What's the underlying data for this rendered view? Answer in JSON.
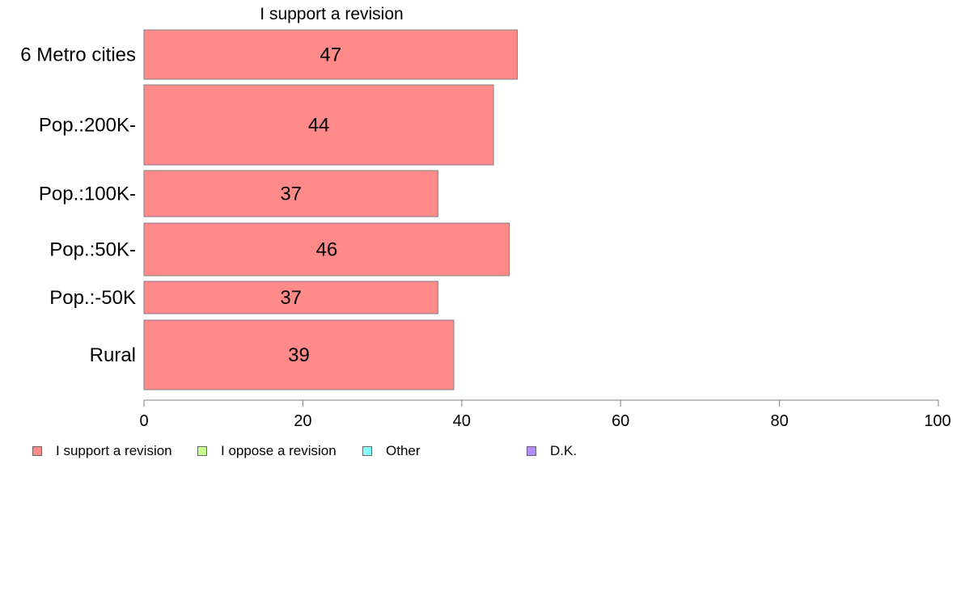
{
  "chart_data": {
    "type": "bar",
    "orientation": "horizontal",
    "title": "I support a revision",
    "categories": [
      "6 Metro cities",
      "Pop.:200K-",
      "Pop.:100K-",
      "Pop.:50K-",
      "Pop.:-50K",
      "Rural"
    ],
    "series": [
      {
        "name": "I support a revision",
        "values": [
          47,
          44,
          37,
          46,
          37,
          39
        ]
      }
    ],
    "data_labels": [
      "47",
      "44",
      "37",
      "46",
      "37",
      "39"
    ],
    "xlim": [
      0,
      100
    ],
    "x_ticks": [
      "0",
      "20",
      "40",
      "60",
      "80",
      "100"
    ],
    "grid": false,
    "legend_position": "bottom-left",
    "legend": [
      {
        "label": "I support a revision",
        "color": "#ff8a8a"
      },
      {
        "label": "I oppose a revision",
        "color": "#c8ff8a"
      },
      {
        "label": "Other",
        "color": "#8affff"
      },
      {
        "label": "D.K.",
        "color": "#b48aff"
      }
    ],
    "bar_color": "#ff8a8a",
    "bar_border_color": "#808080"
  }
}
